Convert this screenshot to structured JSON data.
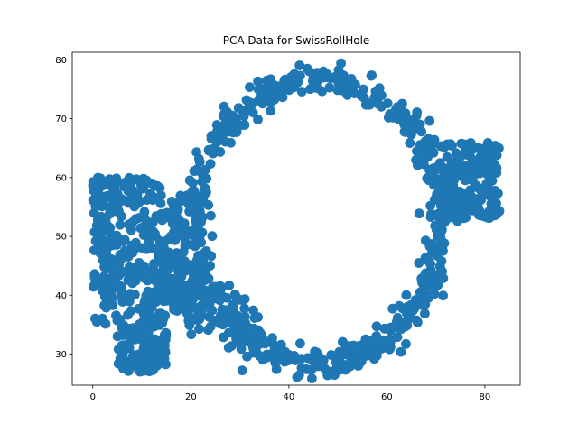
{
  "chart_data": {
    "type": "scatter",
    "title": "PCA Data for SwissRollHole",
    "xlabel": "",
    "ylabel": "",
    "xlim": [
      -4.2,
      87.2
    ],
    "ylim": [
      24.7,
      81.3
    ],
    "xticks": [
      0,
      20,
      40,
      60,
      80
    ],
    "yticks": [
      30,
      40,
      50,
      60,
      70,
      80
    ],
    "grid": false,
    "legend": "none",
    "marker_color": "#1f77b4",
    "series": [
      {
        "ring_shape": {
          "center": [
            46,
            52.5
          ],
          "rx": 25,
          "ry": 24,
          "thickness": 2.5,
          "count": 620
        },
        "left_cluster_shape": {
          "x_range": [
            0,
            22
          ],
          "y_range": [
            27,
            60
          ],
          "count": 520
        },
        "left_bridge_shape": {
          "from": [
            10,
            44
          ],
          "to": [
            33,
            33
          ],
          "spread": 3,
          "count": 120
        },
        "right_cluster_shape": {
          "x_range": [
            71,
            83
          ],
          "y_range": [
            53,
            66
          ],
          "count": 180
        }
      }
    ]
  }
}
